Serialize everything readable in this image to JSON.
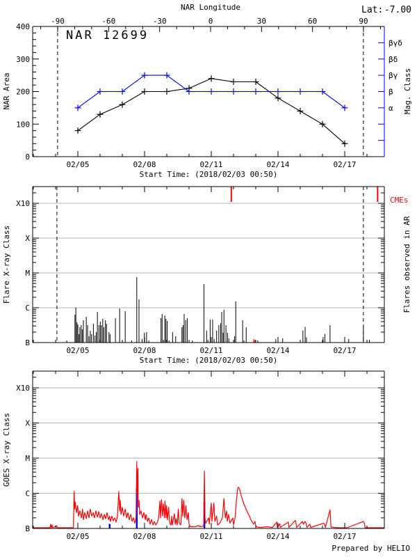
{
  "app": {
    "kind": "solar-active-region-summary-plot",
    "prepared_by": "Prepared by HELIO"
  },
  "colors": {
    "axis": "#000000",
    "mag_class_blue": "#0000ff",
    "flare_red": "#ff0000",
    "grid_gray": "#b3b3b3",
    "background": "#ffffff"
  },
  "chart_data": [
    {
      "id": "nar_area_panel",
      "type": "line",
      "title": "NAR 12699",
      "lat_label": "Lat:",
      "lat_value": "-7.00",
      "top_axis": {
        "title": "NAR Longitude",
        "major_ticks": [
          -90,
          -60,
          -30,
          0,
          30,
          60,
          90
        ],
        "tick_labels": [
          "-90",
          "-60",
          "-30",
          "0",
          "30",
          "60",
          "90"
        ],
        "minor_step": 10
      },
      "x_axis": {
        "start_time_label": "Start Time: (2018/02/03 00:50)",
        "tick_days": [
          2,
          5,
          8,
          11,
          14
        ],
        "tick_labels": [
          "02/05",
          "02/08",
          "02/11",
          "02/14",
          "02/17"
        ],
        "minor_step_days": 1,
        "range_days": [
          -0.03,
          15.78
        ]
      },
      "y_axis": {
        "label": "NAR Area",
        "ticks": [
          0,
          100,
          200,
          300,
          400
        ],
        "tick_labels": [
          "0",
          "100",
          "200",
          "300",
          "400"
        ],
        "minor_step": 20,
        "range": [
          0,
          400
        ]
      },
      "right_axis": {
        "label": "Mag. Class",
        "color": "#0000ff",
        "tick_values": [
          50,
          100,
          150,
          200,
          250,
          300,
          350
        ],
        "labeled_ticks": [
          {
            "value": 150,
            "label": "α"
          },
          {
            "value": 200,
            "label": "β"
          },
          {
            "value": 250,
            "label": "βγ"
          },
          {
            "value": 300,
            "label": "βδ"
          },
          {
            "value": 350,
            "label": "βγδ"
          }
        ]
      },
      "limb_lines_days": [
        1.09,
        14.84
      ],
      "series": [
        {
          "name": "NAR Area",
          "color": "#000000",
          "marker": "plus",
          "days": [
            2,
            3,
            4,
            5,
            6,
            7,
            8,
            9,
            10,
            11,
            12,
            13,
            14
          ],
          "values": [
            80,
            130,
            160,
            200,
            200,
            210,
            240,
            230,
            230,
            180,
            140,
            100,
            40
          ]
        },
        {
          "name": "Mag. Class",
          "color": "#0000ff",
          "marker": "plus",
          "days": [
            2,
            3,
            4,
            5,
            6,
            7,
            8,
            9,
            10,
            11,
            12,
            13,
            14
          ],
          "values": [
            150,
            200,
            200,
            250,
            250,
            200,
            200,
            200,
            200,
            200,
            200,
            200,
            150
          ],
          "classes": [
            "α",
            "β",
            "β",
            "βγ",
            "βγ",
            "β",
            "β",
            "β",
            "β",
            "β",
            "β",
            "β",
            "α"
          ]
        }
      ]
    },
    {
      "id": "flares_panel",
      "type": "event-spikes",
      "y_axis": {
        "label": "Flare X-ray Class",
        "tick_labels": [
          "B",
          "C",
          "M",
          "X",
          "X10"
        ],
        "log_decades": [
          0,
          1,
          2,
          3,
          4
        ]
      },
      "right_label": "Flares observed in AR",
      "cme": {
        "label": "CMEs",
        "color": "#ff0000",
        "event_days": [
          8.9,
          15.48
        ]
      },
      "x_axis": {
        "start_time_label": "Start Time: (2018/02/03 00:50)",
        "tick_days": [
          2,
          5,
          8,
          11,
          14
        ],
        "tick_labels": [
          "02/05",
          "02/08",
          "02/11",
          "02/14",
          "02/17"
        ],
        "minor_step_days": 1,
        "range_days": [
          -0.03,
          15.78
        ]
      },
      "limb_lines_days": [
        1.06,
        14.84
      ],
      "flares": [
        [
          1.5,
          0.06
        ],
        [
          1.87,
          0.8
        ],
        [
          1.91,
          1.0
        ],
        [
          1.96,
          0.58
        ],
        [
          2.0,
          0.52
        ],
        [
          2.05,
          0.24
        ],
        [
          2.09,
          0.44
        ],
        [
          2.15,
          0.5
        ],
        [
          2.2,
          0.38
        ],
        [
          2.25,
          0.64
        ],
        [
          2.38,
          0.74
        ],
        [
          2.44,
          0.5
        ],
        [
          2.5,
          0.18
        ],
        [
          2.56,
          0.34
        ],
        [
          2.62,
          0.24
        ],
        [
          2.7,
          0.54
        ],
        [
          2.77,
          0.2
        ],
        [
          2.83,
          0.3
        ],
        [
          2.88,
          0.88
        ],
        [
          2.95,
          0.5
        ],
        [
          3.01,
          0.6
        ],
        [
          3.06,
          0.5
        ],
        [
          3.12,
          0.68
        ],
        [
          3.17,
          0.44
        ],
        [
          3.24,
          0.64
        ],
        [
          3.29,
          0.54
        ],
        [
          3.4,
          0.3
        ],
        [
          3.45,
          0.24
        ],
        [
          3.69,
          0.7
        ],
        [
          3.88,
          0.98
        ],
        [
          4.13,
          0.9
        ],
        [
          4.42,
          0.06
        ],
        [
          4.65,
          1.88
        ],
        [
          4.75,
          1.24
        ],
        [
          4.89,
          0.1
        ],
        [
          4.99,
          0.28
        ],
        [
          5.09,
          0.3
        ],
        [
          5.19,
          0.06
        ],
        [
          5.74,
          0.7
        ],
        [
          5.79,
          0.82
        ],
        [
          5.85,
          0.08
        ],
        [
          5.91,
          0.78
        ],
        [
          5.96,
          0.68
        ],
        [
          6.02,
          0.62
        ],
        [
          6.1,
          0.06
        ],
        [
          6.26,
          0.3
        ],
        [
          6.4,
          0.18
        ],
        [
          6.68,
          0.44
        ],
        [
          6.73,
          0.5
        ],
        [
          6.78,
          0.82
        ],
        [
          6.85,
          0.64
        ],
        [
          6.92,
          0.7
        ],
        [
          7.15,
          0.06
        ],
        [
          7.67,
          1.68
        ],
        [
          7.79,
          0.34
        ],
        [
          7.85,
          0.08
        ],
        [
          7.95,
          0.66
        ],
        [
          8.06,
          0.66
        ],
        [
          8.13,
          0.1
        ],
        [
          8.24,
          0.34
        ],
        [
          8.34,
          0.5
        ],
        [
          8.42,
          0.55
        ],
        [
          8.47,
          0.88
        ],
        [
          8.53,
          0.28
        ],
        [
          8.57,
          0.94
        ],
        [
          8.66,
          0.5
        ],
        [
          8.73,
          0.28
        ],
        [
          8.79,
          0.12
        ],
        [
          9.05,
          0.18
        ],
        [
          9.1,
          1.18
        ],
        [
          9.41,
          0.64
        ],
        [
          9.47,
          0.06
        ],
        [
          9.57,
          0.44
        ],
        [
          10.09,
          0.06
        ],
        [
          10.9,
          0.1
        ],
        [
          11.21,
          0.12
        ],
        [
          12.12,
          0.35
        ],
        [
          12.22,
          0.45
        ],
        [
          12.28,
          0.15
        ],
        [
          13.03,
          0.16
        ],
        [
          13.11,
          0.25
        ],
        [
          13.34,
          0.5
        ],
        [
          14.18,
          0.1
        ],
        [
          14.84,
          0.45
        ],
        [
          15.11,
          0.08
        ]
      ],
      "red_flares": [
        [
          9.91,
          0.1
        ],
        [
          9.96,
          0.07
        ]
      ]
    },
    {
      "id": "goes_panel",
      "type": "line",
      "y_axis": {
        "label": "GOES X-ray Class",
        "tick_labels": [
          "B",
          "C",
          "M",
          "X",
          "X10"
        ],
        "log_decades": [
          0,
          1,
          2,
          3,
          4
        ]
      },
      "x_axis": {
        "tick_days": [
          2,
          5,
          8,
          11,
          14
        ],
        "tick_labels": [
          "02/05",
          "02/08",
          "02/11",
          "02/14",
          "02/17"
        ],
        "minor_step_days": 1,
        "range_days": [
          -0.03,
          15.78
        ]
      },
      "footer": "Prepared by HELIO",
      "series_color": "#ff0000",
      "flux": [
        [
          -0.03,
          0.02
        ],
        [
          0.75,
          0.02
        ],
        [
          0.78,
          0.12
        ],
        [
          0.8,
          0.02
        ],
        [
          0.84,
          0.1
        ],
        [
          0.86,
          0.02
        ],
        [
          1.05,
          0.08
        ],
        [
          1.07,
          0.02
        ],
        [
          1.8,
          0.02
        ],
        [
          1.83,
          1.05
        ],
        [
          1.86,
          0.55
        ],
        [
          1.88,
          0.75
        ],
        [
          1.94,
          0.45
        ],
        [
          1.99,
          0.65
        ],
        [
          2.03,
          0.35
        ],
        [
          2.09,
          0.5
        ],
        [
          2.16,
          0.3
        ],
        [
          2.21,
          0.55
        ],
        [
          2.25,
          0.25
        ],
        [
          2.31,
          0.45
        ],
        [
          2.38,
          0.28
        ],
        [
          2.44,
          0.5
        ],
        [
          2.5,
          0.3
        ],
        [
          2.56,
          0.55
        ],
        [
          2.63,
          0.35
        ],
        [
          2.69,
          0.45
        ],
        [
          2.75,
          0.3
        ],
        [
          2.81,
          0.5
        ],
        [
          2.88,
          0.32
        ],
        [
          2.94,
          0.48
        ],
        [
          3.0,
          0.3
        ],
        [
          3.06,
          0.42
        ],
        [
          3.13,
          0.25
        ],
        [
          3.19,
          0.4
        ],
        [
          3.25,
          0.28
        ],
        [
          3.31,
          0.45
        ],
        [
          3.38,
          0.25
        ],
        [
          3.43,
          0.35
        ],
        [
          3.47,
          0.2
        ],
        [
          3.53,
          0.35
        ],
        [
          3.59,
          0.22
        ],
        [
          3.66,
          0.3
        ],
        [
          3.72,
          0.18
        ],
        [
          3.78,
          0.35
        ],
        [
          3.84,
          1.05
        ],
        [
          3.88,
          0.5
        ],
        [
          3.91,
          0.8
        ],
        [
          3.94,
          0.4
        ],
        [
          4.0,
          0.6
        ],
        [
          4.06,
          0.35
        ],
        [
          4.13,
          0.55
        ],
        [
          4.19,
          0.3
        ],
        [
          4.25,
          0.45
        ],
        [
          4.31,
          0.25
        ],
        [
          4.38,
          0.4
        ],
        [
          4.44,
          0.2
        ],
        [
          4.5,
          0.3
        ],
        [
          4.56,
          0.15
        ],
        [
          4.62,
          0.3
        ],
        [
          4.65,
          1.9
        ],
        [
          4.67,
          1.0
        ],
        [
          4.7,
          1.7
        ],
        [
          4.72,
          0.6
        ],
        [
          4.75,
          0.8
        ],
        [
          4.78,
          0.4
        ],
        [
          4.84,
          0.5
        ],
        [
          4.91,
          0.3
        ],
        [
          4.97,
          0.45
        ],
        [
          5.03,
          0.25
        ],
        [
          5.06,
          0.4
        ],
        [
          5.13,
          0.2
        ],
        [
          5.19,
          0.3
        ],
        [
          5.25,
          0.12
        ],
        [
          5.31,
          0.25
        ],
        [
          5.38,
          0.1
        ],
        [
          5.44,
          0.2
        ],
        [
          5.5,
          0.1
        ],
        [
          5.56,
          0.15
        ],
        [
          5.63,
          0.3
        ],
        [
          5.69,
          0.78
        ],
        [
          5.72,
          0.3
        ],
        [
          5.76,
          0.82
        ],
        [
          5.81,
          0.35
        ],
        [
          5.84,
          0.7
        ],
        [
          5.9,
          0.3
        ],
        [
          5.92,
          0.78
        ],
        [
          5.97,
          0.3
        ],
        [
          5.99,
          0.65
        ],
        [
          6.03,
          0.25
        ],
        [
          6.08,
          0.6
        ],
        [
          6.13,
          0.15
        ],
        [
          6.19,
          0.1
        ],
        [
          6.22,
          0.35
        ],
        [
          6.25,
          0.1
        ],
        [
          6.34,
          0.42
        ],
        [
          6.38,
          0.12
        ],
        [
          6.42,
          0.28
        ],
        [
          6.47,
          0.1
        ],
        [
          6.52,
          0.55
        ],
        [
          6.56,
          0.15
        ],
        [
          6.63,
          0.1
        ],
        [
          6.68,
          0.85
        ],
        [
          6.72,
          0.35
        ],
        [
          6.76,
          0.8
        ],
        [
          6.81,
          0.3
        ],
        [
          6.86,
          0.65
        ],
        [
          6.91,
          0.25
        ],
        [
          6.97,
          0.45
        ],
        [
          7.0,
          0.12
        ],
        [
          7.06,
          0.05
        ],
        [
          7.25,
          0.05
        ],
        [
          7.41,
          0.08
        ],
        [
          7.56,
          0.05
        ],
        [
          7.66,
          0.08
        ],
        [
          7.69,
          1.63
        ],
        [
          7.72,
          0.3
        ],
        [
          7.75,
          0.15
        ],
        [
          7.88,
          0.3
        ],
        [
          7.91,
          0.12
        ],
        [
          8.0,
          0.72
        ],
        [
          8.03,
          0.2
        ],
        [
          8.12,
          0.72
        ],
        [
          8.16,
          0.2
        ],
        [
          8.24,
          0.35
        ],
        [
          8.28,
          0.1
        ],
        [
          8.38,
          0.15
        ],
        [
          8.5,
          0.3
        ],
        [
          8.57,
          0.85
        ],
        [
          8.63,
          0.3
        ],
        [
          8.69,
          0.5
        ],
        [
          8.72,
          0.2
        ],
        [
          8.78,
          0.4
        ],
        [
          8.84,
          0.15
        ],
        [
          8.97,
          0.3
        ],
        [
          9.0,
          0.1
        ],
        [
          9.07,
          0.3
        ],
        [
          9.13,
          0.8
        ],
        [
          9.19,
          1.15
        ],
        [
          9.23,
          1.17
        ],
        [
          9.28,
          1.1
        ],
        [
          9.34,
          0.95
        ],
        [
          9.41,
          0.8
        ],
        [
          9.47,
          0.7
        ],
        [
          9.53,
          0.6
        ],
        [
          9.6,
          0.5
        ],
        [
          9.66,
          0.42
        ],
        [
          9.72,
          0.35
        ],
        [
          9.78,
          0.25
        ],
        [
          9.84,
          0.18
        ],
        [
          9.91,
          0.12
        ],
        [
          9.97,
          0.2
        ],
        [
          10.0,
          0.08
        ],
        [
          10.06,
          0.04
        ],
        [
          10.22,
          0.03
        ],
        [
          10.5,
          0.05
        ],
        [
          10.75,
          0.03
        ],
        [
          10.95,
          0.18
        ],
        [
          10.97,
          0.03
        ],
        [
          11.08,
          0.13
        ],
        [
          11.1,
          0.03
        ],
        [
          11.47,
          0.18
        ],
        [
          11.49,
          0.03
        ],
        [
          11.78,
          0.23
        ],
        [
          11.81,
          0.15
        ],
        [
          11.84,
          0.03
        ],
        [
          12.1,
          0.2
        ],
        [
          12.14,
          0.12
        ],
        [
          12.22,
          0.2
        ],
        [
          12.26,
          0.15
        ],
        [
          12.3,
          0.03
        ],
        [
          12.43,
          0.12
        ],
        [
          12.47,
          0.03
        ],
        [
          13.06,
          0.15
        ],
        [
          13.1,
          0.1
        ],
        [
          13.13,
          0.03
        ],
        [
          13.34,
          0.53
        ],
        [
          13.38,
          0.04
        ],
        [
          13.7,
          0.02
        ],
        [
          14.1,
          0.02
        ],
        [
          14.84,
          0.2
        ],
        [
          14.88,
          0.15
        ],
        [
          14.92,
          0.02
        ],
        [
          15.78,
          0.02
        ]
      ],
      "blue_spikes": [
        [
          3.43,
          0.13
        ],
        [
          4.65,
          1.15
        ],
        [
          7.69,
          0.75
        ]
      ]
    }
  ]
}
